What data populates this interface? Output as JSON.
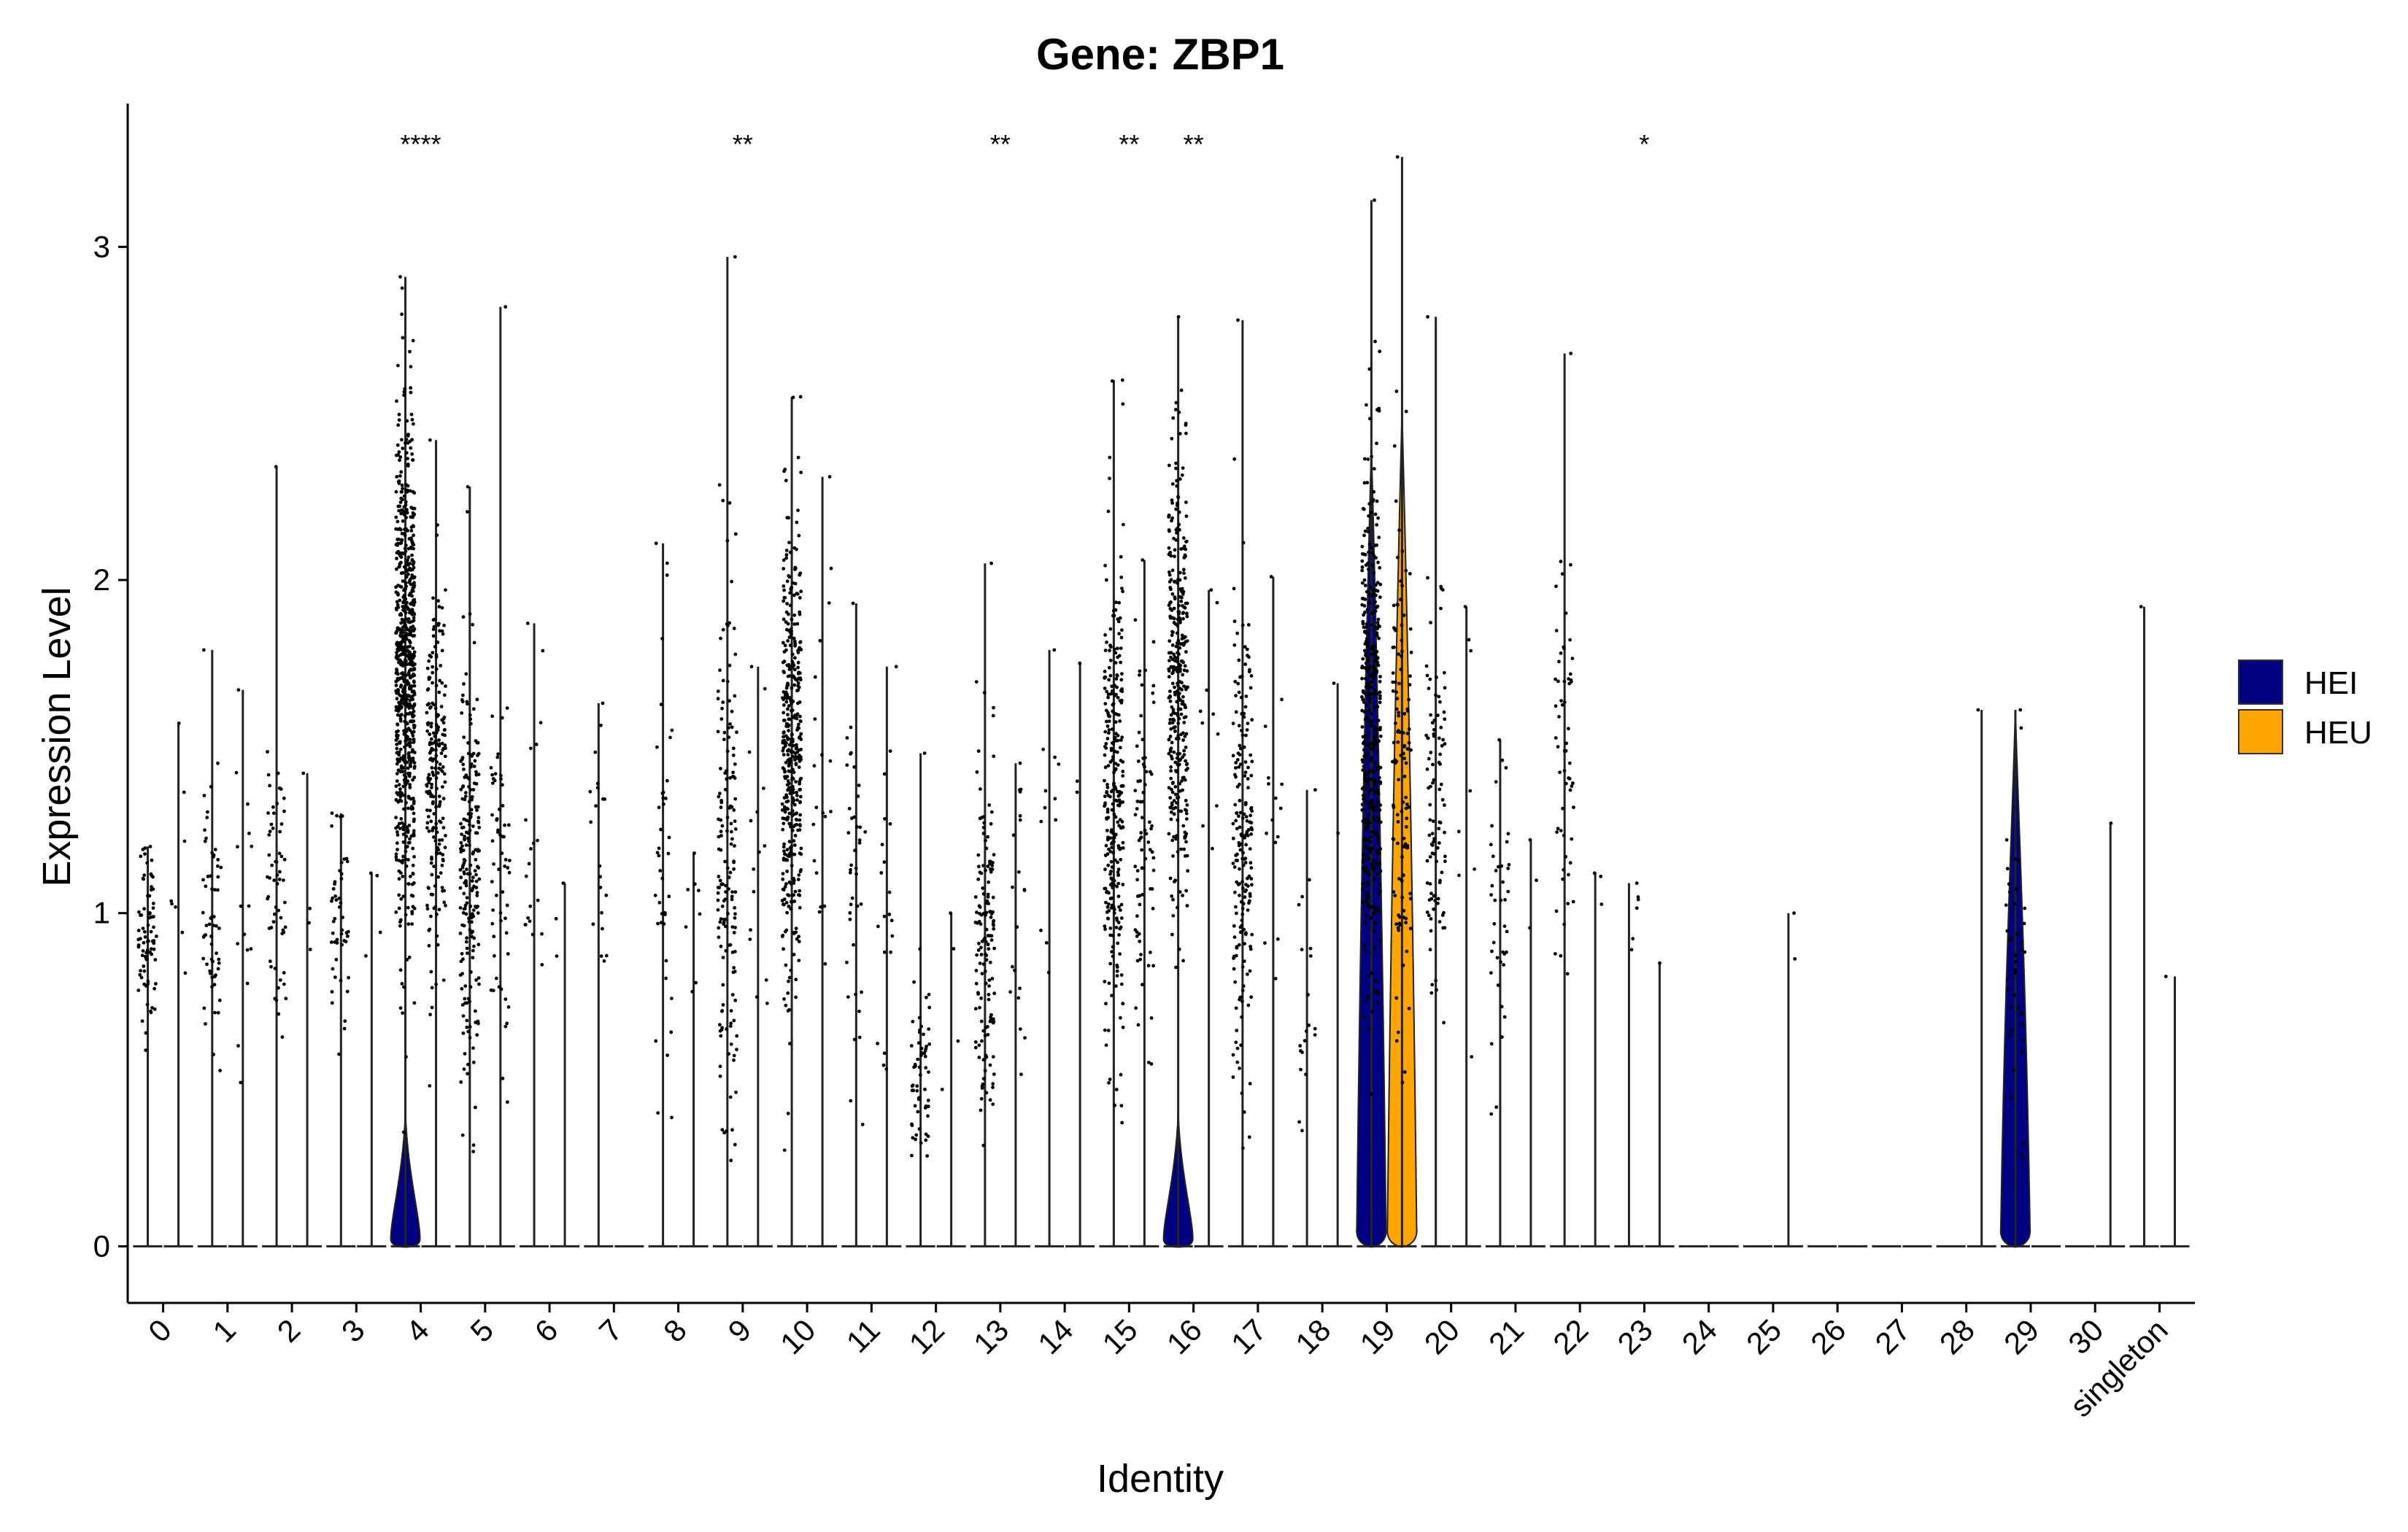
{
  "chart_data": {
    "type": "violin",
    "title": "Gene: ZBP1",
    "xlabel": "Identity",
    "ylabel": "Expression Level",
    "ylim": [
      -0.17,
      3.43
    ],
    "yticks": [
      0,
      1,
      2,
      3
    ],
    "grid": false,
    "legend_position": "right",
    "categories": [
      "0",
      "1",
      "2",
      "3",
      "4",
      "5",
      "6",
      "7",
      "8",
      "9",
      "10",
      "11",
      "12",
      "13",
      "14",
      "15",
      "16",
      "17",
      "18",
      "19",
      "20",
      "21",
      "22",
      "23",
      "24",
      "25",
      "26",
      "27",
      "28",
      "29",
      "30",
      "singleton"
    ],
    "series": [
      {
        "name": "HEI",
        "color": "#000080"
      },
      {
        "name": "HEU",
        "color": "#FFA500"
      }
    ],
    "violins": [
      {
        "category": "0",
        "HEI": {
          "max": 1.2,
          "pts": 80,
          "center": 0.95,
          "spread": 0.15,
          "zero_width": 0
        },
        "HEU": {
          "max": 1.57,
          "pts": 8,
          "center": 1.0,
          "spread": 0.25,
          "zero_width": 0
        }
      },
      {
        "category": "1",
        "HEI": {
          "max": 1.79,
          "pts": 60,
          "center": 0.95,
          "spread": 0.2,
          "zero_width": 0
        },
        "HEU": {
          "max": 1.67,
          "pts": 15,
          "center": 0.95,
          "spread": 0.2,
          "zero_width": 0
        }
      },
      {
        "category": "2",
        "HEI": {
          "max": 2.34,
          "pts": 60,
          "center": 1.05,
          "spread": 0.25,
          "zero_width": 0
        },
        "HEU": {
          "max": 1.42,
          "pts": 4,
          "center": 1.0,
          "spread": 0.2,
          "zero_width": 0
        }
      },
      {
        "category": "3",
        "HEI": {
          "max": 1.3,
          "pts": 50,
          "center": 0.95,
          "spread": 0.18,
          "zero_width": 0
        },
        "HEU": {
          "max": 1.12,
          "pts": 4,
          "center": 0.9,
          "spread": 0.15,
          "zero_width": 0
        }
      },
      {
        "category": "4",
        "HEI": {
          "max": 2.91,
          "pts": 750,
          "center": 1.75,
          "spread": 0.35,
          "zero_width": 0.4
        },
        "HEU": {
          "max": 2.42,
          "pts": 220,
          "center": 1.45,
          "spread": 0.3,
          "zero_width": 0
        }
      },
      {
        "category": "5",
        "HEI": {
          "max": 2.28,
          "pts": 220,
          "center": 1.15,
          "spread": 0.3,
          "zero_width": 0
        },
        "HEU": {
          "max": 2.82,
          "pts": 60,
          "center": 1.15,
          "spread": 0.3,
          "zero_width": 0
        }
      },
      {
        "category": "6",
        "HEI": {
          "max": 1.87,
          "pts": 20,
          "center": 1.1,
          "spread": 0.25,
          "zero_width": 0
        },
        "HEU": {
          "max": 1.09,
          "pts": 3,
          "center": 0.95,
          "spread": 0.15,
          "zero_width": 0
        }
      },
      {
        "category": "7",
        "HEI": {
          "max": 1.63,
          "pts": 20,
          "center": 1.2,
          "spread": 0.25,
          "zero_width": 0
        },
        "HEU": {
          "max": 0,
          "pts": 0,
          "center": 0,
          "spread": 0,
          "zero_width": 0
        }
      },
      {
        "category": "8",
        "HEI": {
          "max": 2.11,
          "pts": 40,
          "center": 1.1,
          "spread": 0.35,
          "zero_width": 0
        },
        "HEU": {
          "max": 1.18,
          "pts": 8,
          "center": 1.0,
          "spread": 0.2,
          "zero_width": 0
        }
      },
      {
        "category": "9",
        "HEI": {
          "max": 2.97,
          "pts": 160,
          "center": 1.2,
          "spread": 0.4,
          "zero_width": 0
        },
        "HEU": {
          "max": 1.74,
          "pts": 15,
          "center": 1.2,
          "spread": 0.3,
          "zero_width": 0
        }
      },
      {
        "category": "10",
        "HEI": {
          "max": 2.55,
          "pts": 420,
          "center": 1.45,
          "spread": 0.35,
          "zero_width": 0
        },
        "HEU": {
          "max": 2.31,
          "pts": 20,
          "center": 1.4,
          "spread": 0.3,
          "zero_width": 0
        }
      },
      {
        "category": "11",
        "HEI": {
          "max": 1.93,
          "pts": 40,
          "center": 1.15,
          "spread": 0.3,
          "zero_width": 0
        },
        "HEU": {
          "max": 1.74,
          "pts": 20,
          "center": 1.1,
          "spread": 0.3,
          "zero_width": 0
        }
      },
      {
        "category": "12",
        "HEI": {
          "max": 1.48,
          "pts": 60,
          "center": 0.5,
          "spread": 0.15,
          "zero_width": 0
        },
        "HEU": {
          "max": 1.0,
          "pts": 4,
          "center": 0.7,
          "spread": 0.15,
          "zero_width": 0
        }
      },
      {
        "category": "13",
        "HEI": {
          "max": 2.05,
          "pts": 150,
          "center": 0.95,
          "spread": 0.3,
          "zero_width": 0
        },
        "HEU": {
          "max": 1.45,
          "pts": 20,
          "center": 0.9,
          "spread": 0.3,
          "zero_width": 0
        }
      },
      {
        "category": "14",
        "HEI": {
          "max": 1.79,
          "pts": 12,
          "center": 1.3,
          "spread": 0.25,
          "zero_width": 0
        },
        "HEU": {
          "max": 1.75,
          "pts": 3,
          "center": 1.3,
          "spread": 0.2,
          "zero_width": 0
        }
      },
      {
        "category": "15",
        "HEI": {
          "max": 2.6,
          "pts": 300,
          "center": 1.35,
          "spread": 0.35,
          "zero_width": 0
        },
        "HEU": {
          "max": 2.06,
          "pts": 80,
          "center": 1.2,
          "spread": 0.3,
          "zero_width": 0
        }
      },
      {
        "category": "16",
        "HEI": {
          "max": 2.79,
          "pts": 360,
          "center": 1.7,
          "spread": 0.35,
          "zero_width": 0.35
        },
        "HEU": {
          "max": 1.97,
          "pts": 10,
          "center": 1.4,
          "spread": 0.3,
          "zero_width": 0
        }
      },
      {
        "category": "17",
        "HEI": {
          "max": 2.78,
          "pts": 200,
          "center": 1.25,
          "spread": 0.35,
          "zero_width": 0
        },
        "HEU": {
          "max": 2.01,
          "pts": 15,
          "center": 1.2,
          "spread": 0.3,
          "zero_width": 0
        }
      },
      {
        "category": "18",
        "HEI": {
          "max": 1.37,
          "pts": 20,
          "center": 0.7,
          "spread": 0.2,
          "zero_width": 0
        },
        "HEU": {
          "max": 1.69,
          "pts": 2,
          "center": 1.0,
          "spread": 0.2,
          "zero_width": 0
        }
      },
      {
        "category": "19",
        "HEI": {
          "max": 3.14,
          "pts": 420,
          "center": 1.6,
          "spread": 0.4,
          "zero_width": 0.45,
          "filled_to": 2.4
        },
        "HEU": {
          "max": 3.27,
          "pts": 120,
          "center": 1.45,
          "spread": 0.35,
          "zero_width": 0.45,
          "filled_to": 2.5
        }
      },
      {
        "category": "20",
        "HEI": {
          "max": 2.79,
          "pts": 100,
          "center": 1.3,
          "spread": 0.3,
          "zero_width": 0
        },
        "HEU": {
          "max": 1.92,
          "pts": 8,
          "center": 1.3,
          "spread": 0.3,
          "zero_width": 0
        }
      },
      {
        "category": "21",
        "HEI": {
          "max": 1.52,
          "pts": 40,
          "center": 1.0,
          "spread": 0.25,
          "zero_width": 0
        },
        "HEU": {
          "max": 1.22,
          "pts": 3,
          "center": 1.0,
          "spread": 0.15,
          "zero_width": 0
        }
      },
      {
        "category": "22",
        "HEI": {
          "max": 2.68,
          "pts": 60,
          "center": 1.45,
          "spread": 0.3,
          "zero_width": 0
        },
        "HEU": {
          "max": 1.12,
          "pts": 3,
          "center": 1.0,
          "spread": 0.1,
          "zero_width": 0
        }
      },
      {
        "category": "23",
        "HEI": {
          "max": 1.09,
          "pts": 6,
          "center": 1.0,
          "spread": 0.08,
          "zero_width": 0
        },
        "HEU": {
          "max": 0.85,
          "pts": 1,
          "center": 0.85,
          "spread": 0.01,
          "zero_width": 0
        }
      },
      {
        "category": "24",
        "HEI": {
          "max": 0,
          "pts": 0,
          "center": 0,
          "spread": 0,
          "zero_width": 0
        },
        "HEU": {
          "max": 0,
          "pts": 0,
          "center": 0,
          "spread": 0,
          "zero_width": 0
        }
      },
      {
        "category": "25",
        "HEI": {
          "max": 0,
          "pts": 0,
          "center": 0,
          "spread": 0,
          "zero_width": 0
        },
        "HEU": {
          "max": 1.0,
          "pts": 2,
          "center": 0.8,
          "spread": 0.2,
          "zero_width": 0
        }
      },
      {
        "category": "26",
        "HEI": {
          "max": 0,
          "pts": 0,
          "center": 0,
          "spread": 0,
          "zero_width": 0
        },
        "HEU": {
          "max": 0,
          "pts": 0,
          "center": 0,
          "spread": 0,
          "zero_width": 0
        }
      },
      {
        "category": "27",
        "HEI": {
          "max": 0,
          "pts": 0,
          "center": 0,
          "spread": 0,
          "zero_width": 0
        },
        "HEU": {
          "max": 0,
          "pts": 0,
          "center": 0,
          "spread": 0,
          "zero_width": 0
        }
      },
      {
        "category": "28",
        "HEI": {
          "max": 0,
          "pts": 0,
          "center": 0,
          "spread": 0,
          "zero_width": 0
        },
        "HEU": {
          "max": 1.61,
          "pts": 1,
          "center": 1.6,
          "spread": 0.01,
          "zero_width": 0
        }
      },
      {
        "category": "29",
        "HEI": {
          "max": 1.61,
          "pts": 40,
          "center": 0.85,
          "spread": 0.25,
          "zero_width": 0.35,
          "filled_to": 1.61
        },
        "HEU": {
          "max": 0,
          "pts": 0,
          "center": 0,
          "spread": 0,
          "zero_width": 0
        }
      },
      {
        "category": "30",
        "HEI": {
          "max": 0,
          "pts": 0,
          "center": 0,
          "spread": 0,
          "zero_width": 0
        },
        "HEU": {
          "max": 1.27,
          "pts": 1,
          "center": 1.27,
          "spread": 0.01,
          "zero_width": 0
        }
      },
      {
        "category": "singleton",
        "HEI": {
          "max": 1.92,
          "pts": 1,
          "center": 1.07,
          "spread": 0.01,
          "zero_width": 0
        },
        "HEU": {
          "max": 0.81,
          "pts": 1,
          "center": 0.81,
          "spread": 0.01,
          "zero_width": 0
        }
      }
    ],
    "significance": [
      {
        "category": "4",
        "label": "****"
      },
      {
        "category": "9",
        "label": "**"
      },
      {
        "category": "13",
        "label": "**"
      },
      {
        "category": "15",
        "label": "**"
      },
      {
        "category": "16",
        "label": "**"
      },
      {
        "category": "23",
        "label": "*"
      }
    ]
  }
}
